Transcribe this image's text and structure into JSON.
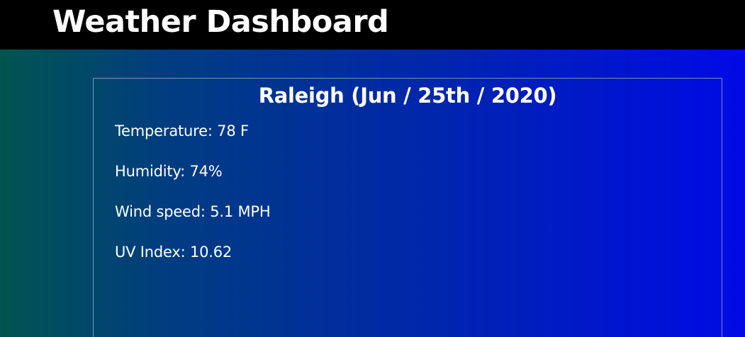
{
  "header": {
    "title": "Weather Dashboard",
    "background": "#000000"
  },
  "current": {
    "title": "Raleigh (Jun / 25th / 2020)",
    "temperature": "Temperature: 78 F",
    "humidity": "Humidity: 74%",
    "wind_speed": "Wind speed: 5.1 MPH",
    "uv_index": "UV Index: 10.62"
  },
  "colors": {
    "gradient_start": "#00554f",
    "gradient_end": "#000ae6",
    "text": "#ffffff",
    "card_border": "#7f8fb3"
  }
}
